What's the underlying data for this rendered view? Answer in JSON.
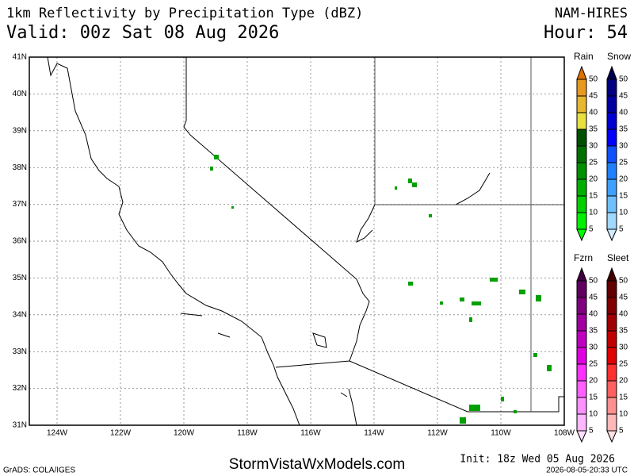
{
  "header": {
    "title": "1km Reflectivity by Precipitation Type (dBZ)",
    "valid": "Valid: 00z Sat 08 Aug 2026",
    "model": "NAM-HIRES",
    "hour": "Hour: 54"
  },
  "map": {
    "lat_labels": [
      "41N",
      "40N",
      "39N",
      "38N",
      "37N",
      "36N",
      "35N",
      "34N",
      "33N",
      "32N",
      "31N"
    ],
    "lon_labels": [
      "124W",
      "122W",
      "120W",
      "118W",
      "116W",
      "114W",
      "112W",
      "110W",
      "108W"
    ]
  },
  "legends": [
    {
      "name": "Rain",
      "ticks": [
        50,
        45,
        40,
        35,
        30,
        25,
        20,
        15,
        10,
        5
      ],
      "colors": [
        "#e07000",
        "#e89a20",
        "#e8b830",
        "#e8e040",
        "#005000",
        "#007000",
        "#009000",
        "#00b000",
        "#00d000",
        "#00f000",
        "#00ff00"
      ]
    },
    {
      "name": "Snow",
      "ticks": [
        50,
        45,
        40,
        35,
        30,
        25,
        20,
        15,
        10,
        5
      ],
      "colors": [
        "#000050",
        "#000080",
        "#0000a0",
        "#0000d0",
        "#0000ff",
        "#1050ff",
        "#2080ff",
        "#40a0ff",
        "#70c0ff",
        "#a0d8ff",
        "#d0ecff"
      ]
    },
    {
      "name": "Fzrn",
      "ticks": [
        50,
        45,
        40,
        35,
        30,
        25,
        20,
        15,
        10,
        5
      ],
      "colors": [
        "#400040",
        "#600060",
        "#800080",
        "#a000a0",
        "#c000c0",
        "#e000e0",
        "#ff30ff",
        "#ff60ff",
        "#ff90ff",
        "#ffb8ff",
        "#ffe0ff"
      ]
    },
    {
      "name": "Sleet",
      "ticks": [
        50,
        45,
        40,
        35,
        30,
        25,
        20,
        15,
        10,
        5
      ],
      "colors": [
        "#400000",
        "#600000",
        "#800000",
        "#a00000",
        "#c00000",
        "#e00000",
        "#ff3030",
        "#ff6060",
        "#ff9090",
        "#ffb8b8",
        "#ffe0e0"
      ]
    }
  ],
  "footer": {
    "credit": "GrADS: COLA/IGES",
    "site": "StormVistaWxModels.com",
    "init": "Init: 18z Wed 05 Aug 2026",
    "stamp": "2026-08-05-20:33 UTC"
  }
}
